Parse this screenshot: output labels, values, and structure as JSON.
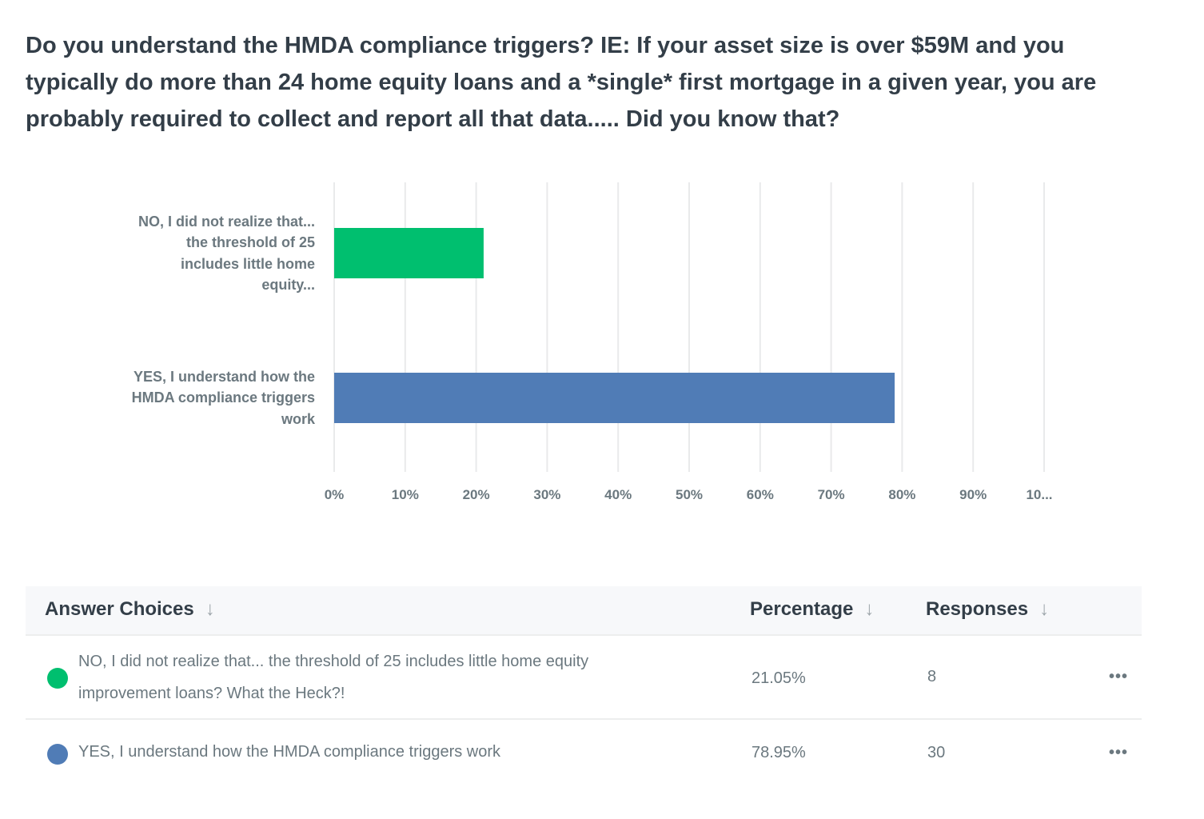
{
  "question": "Do you understand the HMDA compliance triggers? IE: If your asset size is over $59M and you typically do more than 24 home equity loans and a *single* first mortgage in a given year, you are probably required to collect and report all that data..... Did you know that?",
  "chart_data": {
    "type": "bar",
    "orientation": "horizontal",
    "categories": [
      "NO, I did not realize that... the threshold of 25 includes little home equity...",
      "YES, I understand how the HMDA compliance triggers work"
    ],
    "category_label_lines": [
      [
        "NO, I did not realize that...",
        "the threshold of 25",
        "includes little home",
        "equity..."
      ],
      [
        "YES, I understand how the",
        "HMDA compliance triggers",
        "work"
      ]
    ],
    "values": [
      21.05,
      78.95
    ],
    "colors": [
      "#00bf6f",
      "#507cb6"
    ],
    "xlim": [
      0,
      100
    ],
    "x_ticks": [
      "0%",
      "10%",
      "20%",
      "30%",
      "40%",
      "50%",
      "60%",
      "70%",
      "80%",
      "90%",
      "10..."
    ],
    "grid": true,
    "title": "",
    "xlabel": "",
    "ylabel": ""
  },
  "table": {
    "headers": {
      "choices": "Answer Choices",
      "percentage": "Percentage",
      "responses": "Responses"
    },
    "sort_icon": "↓",
    "more_icon": "•••",
    "rows": [
      {
        "choice": "NO, I did not realize that... the threshold of 25 includes little home equity improvement loans? What the Heck?!",
        "percentage": "21.05%",
        "responses": "8",
        "color": "#00bf6f"
      },
      {
        "choice": "YES, I understand how the HMDA compliance triggers work",
        "percentage": "78.95%",
        "responses": "30",
        "color": "#507cb6"
      }
    ]
  }
}
